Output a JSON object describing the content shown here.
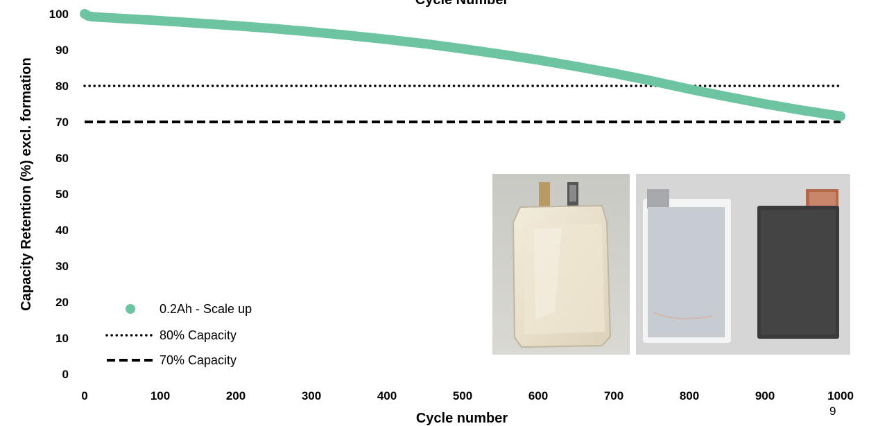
{
  "top_title_fragment": "Cycle Number",
  "page_number": "9",
  "colors": {
    "series": "#6cc4a0",
    "reference_lines": "#000000"
  },
  "chart_data": {
    "type": "scatter",
    "xlabel": "Cycle number",
    "ylabel": "Capacity Retention (%) excl. formation",
    "xlim": [
      0,
      1000
    ],
    "ylim": [
      0,
      100
    ],
    "x_ticks": [
      0,
      100,
      200,
      300,
      400,
      500,
      600,
      700,
      800,
      900,
      1000
    ],
    "y_ticks": [
      0,
      10,
      20,
      30,
      40,
      50,
      60,
      70,
      80,
      90,
      100
    ],
    "grid": false,
    "legend_position": "bottom-left",
    "series": [
      {
        "name": "0.2Ah - Scale up",
        "x": [
          0,
          5,
          10,
          25,
          50,
          100,
          150,
          200,
          250,
          300,
          350,
          400,
          450,
          500,
          550,
          600,
          650,
          700,
          750,
          800,
          850,
          900,
          950,
          1000
        ],
        "y": [
          100,
          99.4,
          99.2,
          99.0,
          98.7,
          98.1,
          97.4,
          96.7,
          95.9,
          95.0,
          94.0,
          92.9,
          91.7,
          90.3,
          88.8,
          87.2,
          85.4,
          83.5,
          81.4,
          79.1,
          77.0,
          75.0,
          73.2,
          71.6
        ]
      }
    ],
    "reference_lines": [
      {
        "name": "80% Capacity",
        "y": 80,
        "style": "dotted"
      },
      {
        "name": "70% Capacity",
        "y": 70,
        "style": "dashed"
      }
    ]
  },
  "inset_images": [
    {
      "name": "pouch-cell-photo"
    },
    {
      "name": "electrode-sheets-photo"
    }
  ]
}
